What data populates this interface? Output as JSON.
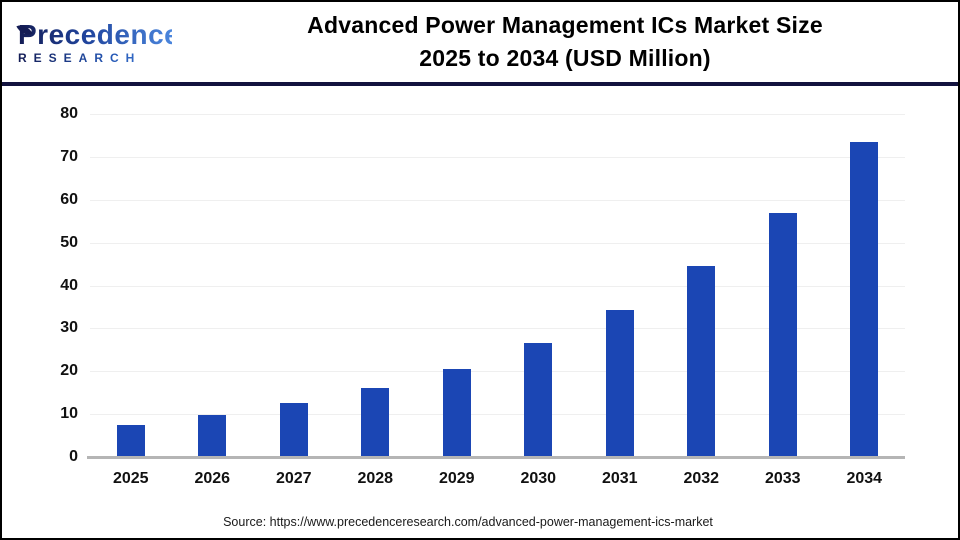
{
  "header": {
    "logo": {
      "name": "Precedence",
      "subtitle": "RESEARCH"
    },
    "title_line1": "Advanced Power Management ICs Market Size",
    "title_line2": "2025 to 2034 (USD Million)"
  },
  "chart_data": {
    "type": "bar",
    "title": "Advanced Power Management ICs Market Size 2025 to 2034 (USD Million)",
    "unit": "USD Million",
    "categories": [
      "2025",
      "2026",
      "2027",
      "2028",
      "2029",
      "2030",
      "2031",
      "2032",
      "2033",
      "2034"
    ],
    "values": [
      7.5,
      9.8,
      12.5,
      16.0,
      20.6,
      26.6,
      34.3,
      44.5,
      57.0,
      73.5
    ],
    "xlabel": "",
    "ylabel": "",
    "ylim": [
      0,
      80
    ],
    "yticks": [
      0,
      10,
      20,
      30,
      40,
      50,
      60,
      70,
      80
    ],
    "grid": true,
    "legend": "none",
    "bar_color": "#1B46B4"
  },
  "footer": {
    "source": "Source: https://www.precedenceresearch.com/advanced-power-management-ics-market"
  },
  "colors": {
    "bar": "#1B46B4",
    "header_separator": "#12123E",
    "gridline": "#EFEFEF",
    "axis_baseline": "#B5B5B5",
    "logo_navy": "#141C54",
    "logo_blue": "#4B86DD",
    "title_text": "#000000"
  }
}
